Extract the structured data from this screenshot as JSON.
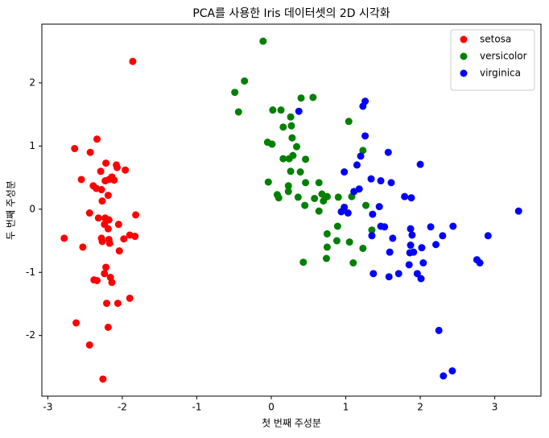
{
  "chart_data": {
    "type": "scatter",
    "title": "PCA를 사용한 Iris 데이터셋의 2D 시각화",
    "xlabel": "첫 번째 주성분",
    "ylabel": "두 번째 주성분",
    "xlim": [
      -3.08,
      3.62
    ],
    "ylim": [
      -2.96,
      2.93
    ],
    "xticks": [
      -3,
      -2,
      -1,
      0,
      1,
      2,
      3
    ],
    "yticks": [
      -2,
      -1,
      0,
      1,
      2
    ],
    "legend": "upper right",
    "series": [
      {
        "name": "setosa",
        "color": "#ff0000",
        "x": [
          -1.86,
          -2.64,
          -2.34,
          -2.43,
          -2.55,
          -2.39,
          -2.35,
          -2.28,
          -2.22,
          -2.08,
          -2.07,
          -1.96,
          -2.29,
          -2.14,
          -2.18,
          -2.11,
          -2.23,
          -2.19,
          -2.27,
          -2.44,
          -2.32,
          -2.23,
          -2.24,
          -2.18,
          -2.05,
          -2.19,
          -1.82,
          -2.78,
          -2.53,
          -2.28,
          -2.27,
          -2.18,
          -2.17,
          -1.98,
          -1.9,
          -1.83,
          -2.04,
          -2.22,
          -2.24,
          -2.16,
          -2.38,
          -2.34,
          -2.14,
          -1.9,
          -2.21,
          -2.06,
          -2.62,
          -2.19,
          -2.44,
          -2.26
        ],
        "values": [
          2.34,
          0.96,
          1.11,
          0.9,
          0.47,
          0.37,
          0.33,
          0.31,
          0.73,
          0.7,
          0.66,
          0.62,
          0.6,
          0.51,
          0.47,
          0.46,
          0.45,
          0.22,
          0.13,
          -0.06,
          -0.14,
          -0.14,
          -0.24,
          -0.17,
          -0.24,
          -0.31,
          -0.09,
          -0.46,
          -0.6,
          -0.46,
          -0.51,
          -0.48,
          -0.54,
          -0.47,
          -0.41,
          -0.43,
          -0.66,
          -0.92,
          -1.02,
          -1.08,
          -1.12,
          -1.13,
          -1.16,
          -1.41,
          -1.49,
          -1.49,
          -1.8,
          -1.87,
          -2.15,
          -2.69
        ]
      },
      {
        "name": "versicolor",
        "color": "#008000",
        "x": [
          -0.11,
          -0.36,
          -0.49,
          -0.44,
          0.4,
          0.56,
          0.02,
          0.13,
          0.26,
          1.04,
          0.16,
          0.27,
          0.28,
          -0.05,
          0.01,
          0.34,
          0.29,
          0.16,
          0.24,
          0.46,
          1.23,
          0.26,
          0.39,
          0.64,
          -0.04,
          0.23,
          0.46,
          0.23,
          0.08,
          0.1,
          0.36,
          0.68,
          0.75,
          0.58,
          0.7,
          0.45,
          0.64,
          1.08,
          0.89,
          0.75,
          1.35,
          1.05,
          0.88,
          0.75,
          1.23,
          0.74,
          1.1,
          0.43,
          0.9,
          1.27
        ],
        "values": [
          2.66,
          2.03,
          1.85,
          1.54,
          1.76,
          1.77,
          1.57,
          1.57,
          1.46,
          1.39,
          1.3,
          1.32,
          1.13,
          1.06,
          1.03,
          0.99,
          0.85,
          0.8,
          0.8,
          0.79,
          0.93,
          0.6,
          0.59,
          0.42,
          0.43,
          0.37,
          0.42,
          0.28,
          0.23,
          0.18,
          0.19,
          0.24,
          0.2,
          0.17,
          0.13,
          0.06,
          -0.03,
          0.2,
          -0.27,
          -0.39,
          -0.33,
          -0.52,
          -0.5,
          -0.6,
          -0.62,
          -0.78,
          -0.85,
          -0.84,
          0.19,
          0.06
        ]
      },
      {
        "name": "virginica",
        "color": "#0000ff",
        "x": [
          1.26,
          1.23,
          0.37,
          1.26,
          1.57,
          1.2,
          1.15,
          2.0,
          0.98,
          1.18,
          1.11,
          1.34,
          1.47,
          1.61,
          1.79,
          1.88,
          1.45,
          0.98,
          0.94,
          1.03,
          1.36,
          3.32,
          1.47,
          1.52,
          1.87,
          1.89,
          1.35,
          2.14,
          2.44,
          2.3,
          2.91,
          1.63,
          2.21,
          1.87,
          2.02,
          1.86,
          1.59,
          1.91,
          2.76,
          2.8,
          2.04,
          1.85,
          1.37,
          1.96,
          2.01,
          1.71,
          1.58,
          2.25,
          2.43,
          2.31
        ],
        "values": [
          1.71,
          1.63,
          1.55,
          1.16,
          0.9,
          0.84,
          0.7,
          0.71,
          0.59,
          0.32,
          0.28,
          0.48,
          0.45,
          0.42,
          0.2,
          0.18,
          0.04,
          0.03,
          -0.04,
          -0.06,
          -0.08,
          -0.03,
          -0.27,
          -0.28,
          -0.31,
          -0.41,
          -0.42,
          -0.28,
          -0.27,
          -0.42,
          -0.42,
          -0.46,
          -0.56,
          -0.57,
          -0.61,
          -0.69,
          -0.68,
          -0.68,
          -0.8,
          -0.85,
          -0.85,
          -0.88,
          -1.02,
          -1.02,
          -1.1,
          -1.02,
          -1.07,
          -1.92,
          -2.56,
          -2.64
        ]
      }
    ]
  }
}
